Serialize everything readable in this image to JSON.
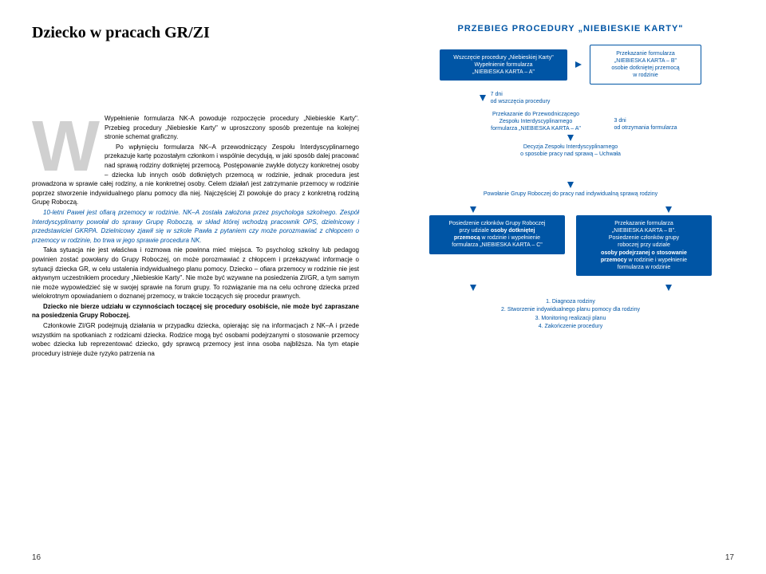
{
  "title": "Dziecko w pracach GR/ZI",
  "dropcap": "W",
  "paragraphs": {
    "p1": "Wypełnienie formularza NK-A powoduje rozpoczęcie procedury „Niebieskie Karty\". Przebieg procedury „Niebieskie Karty\" w uproszczony sposób prezentuje na kolejnej stronie schemat graficzny.",
    "p2": "Po wpłynięciu formularza NK–A przewodniczący Zespołu Interdyscyplinarnego przekazuje kartę pozostałym członkom i wspólnie decydują, w jaki sposób dalej pracować nad sprawą rodziny dotkniętej przemocą. Postępowanie zwykle dotyczy konkretnej osoby – dziecka lub innych osób dotkniętych przemocą w rodzinie, jednak procedura jest prowadzona w sprawie całej rodziny, a nie konkretnej osoby. Celem działań jest zatrzymanie przemocy w rodzinie poprzez stworzenie indywidualnego planu pomocy dla niej. Najczęściej ZI powołuje do pracy z konkretną rodziną Grupę Roboczą.",
    "p3": "10-letni Paweł jest ofiarą przemocy w rodzinie. NK–A została założona przez psychologa szkolnego. Zespół Interdyscyplinarny powołał do sprawy Grupę Roboczą, w skład której wchodzą pracownik OPS, dzielnicowy i przedstawiciel GKRPA. Dzielnicowy zjawił się w szkole Pawła z pytaniem czy może porozmawiać z chłopcem o przemocy w rodzinie, bo trwa w jego sprawie procedura NK.",
    "p4a": "Taka sytuacja nie jest właściwa i rozmowa nie powinna mieć miejsca. To psycholog szkolny lub pedagog powinien zostać powołany do Grupy Roboczej, on może porozmawiać z chłopcem i przekazywać informacje o sytuacji dziecka GR, w celu ustalenia indywidualnego planu pomocy. Dziecko – ofiara przemocy w rodzinie nie jest aktywnym uczestnikiem procedury „Niebieskie Karty\". Nie może być wzywane na posiedzenia ZI/GR, a tym samym nie może wypowiedzieć się w swojej sprawie na forum grupy. To rozwiązanie ma na celu ochronę dziecka przed wielokrotnym opowiadaniem o doznanej przemocy, w trakcie toczących się procedur prawnych.",
    "p5": "Dziecko nie bierze udziału w czynnościach toczącej się procedury osobiście, nie może być zapraszane na posiedzenia Grupy Roboczej.",
    "p6": "Członkowie ZI/GR podejmują działania w przypadku dziecka, opierając się na informacjach z NK–A i przede wszystkim na spotkaniach z rodzicami dziecka. Rodzice mogą być osobami podejrzanymi o stosowanie przemocy wobec dziecka lub reprezentować dziecko, gdy sprawcą przemocy jest inna osoba najbliższa. Na tym etapie procedury istnieje duże ryzyko patrzenia na"
  },
  "flowchart": {
    "title": "PRZEBIEG PROCEDURY „NIEBIESKIE KARTY\"",
    "box1": "Wszczęcie procedury „Niebieskiej Karty\"\nWypełnienie formularza\n„NIEBIESKA KARTA – A\"",
    "box2": "Przekazanie formularza\n„NIEBIESKA KARTA – B\"\nosobie dotkniętej przemocą\nw rodzinie",
    "label_7dni": "7 dni\nod wszczęcia procedury",
    "box3": "Przekazanie do Przewodniczącego\nZespołu Interdyscyplinarnego\nformularza „NIEBIESKA KARTA – A\"",
    "label_3dni": "3 dni\nod otrzymania formularza",
    "box4": "Decyzja Zespołu Interdyscyplinarnego\no sposobie pracy nad sprawą – Uchwała",
    "box5": "Powołanie Grupy Roboczej do pracy nad indywidualną sprawą rodziny",
    "box6": "Posiedzenie członków Grupy Roboczej\nprzy udziale osoby dotkniętej\nprzemocą w rodzinie i wypełnienie\nformularza „NIEBIESKA KARTA – C\"",
    "box7": "Przekazanie formularza\n„NIEBIESKA KARTA – B\".\nPosiedzenie członków grupy\nroboczej przy udziale\nosoby podejrzanej o stosowanie\nprzemocy w rodzinie i wypełnienie\nformularza w rodzinie",
    "steps": "1. Diagnoza rodziny\n2. Stworzenie indywidualnego planu pomocy dla rodziny\n3. Monitoring realizacji planu\n4. Zakończenie procedury"
  },
  "pageNumLeft": "16",
  "pageNumRight": "17"
}
